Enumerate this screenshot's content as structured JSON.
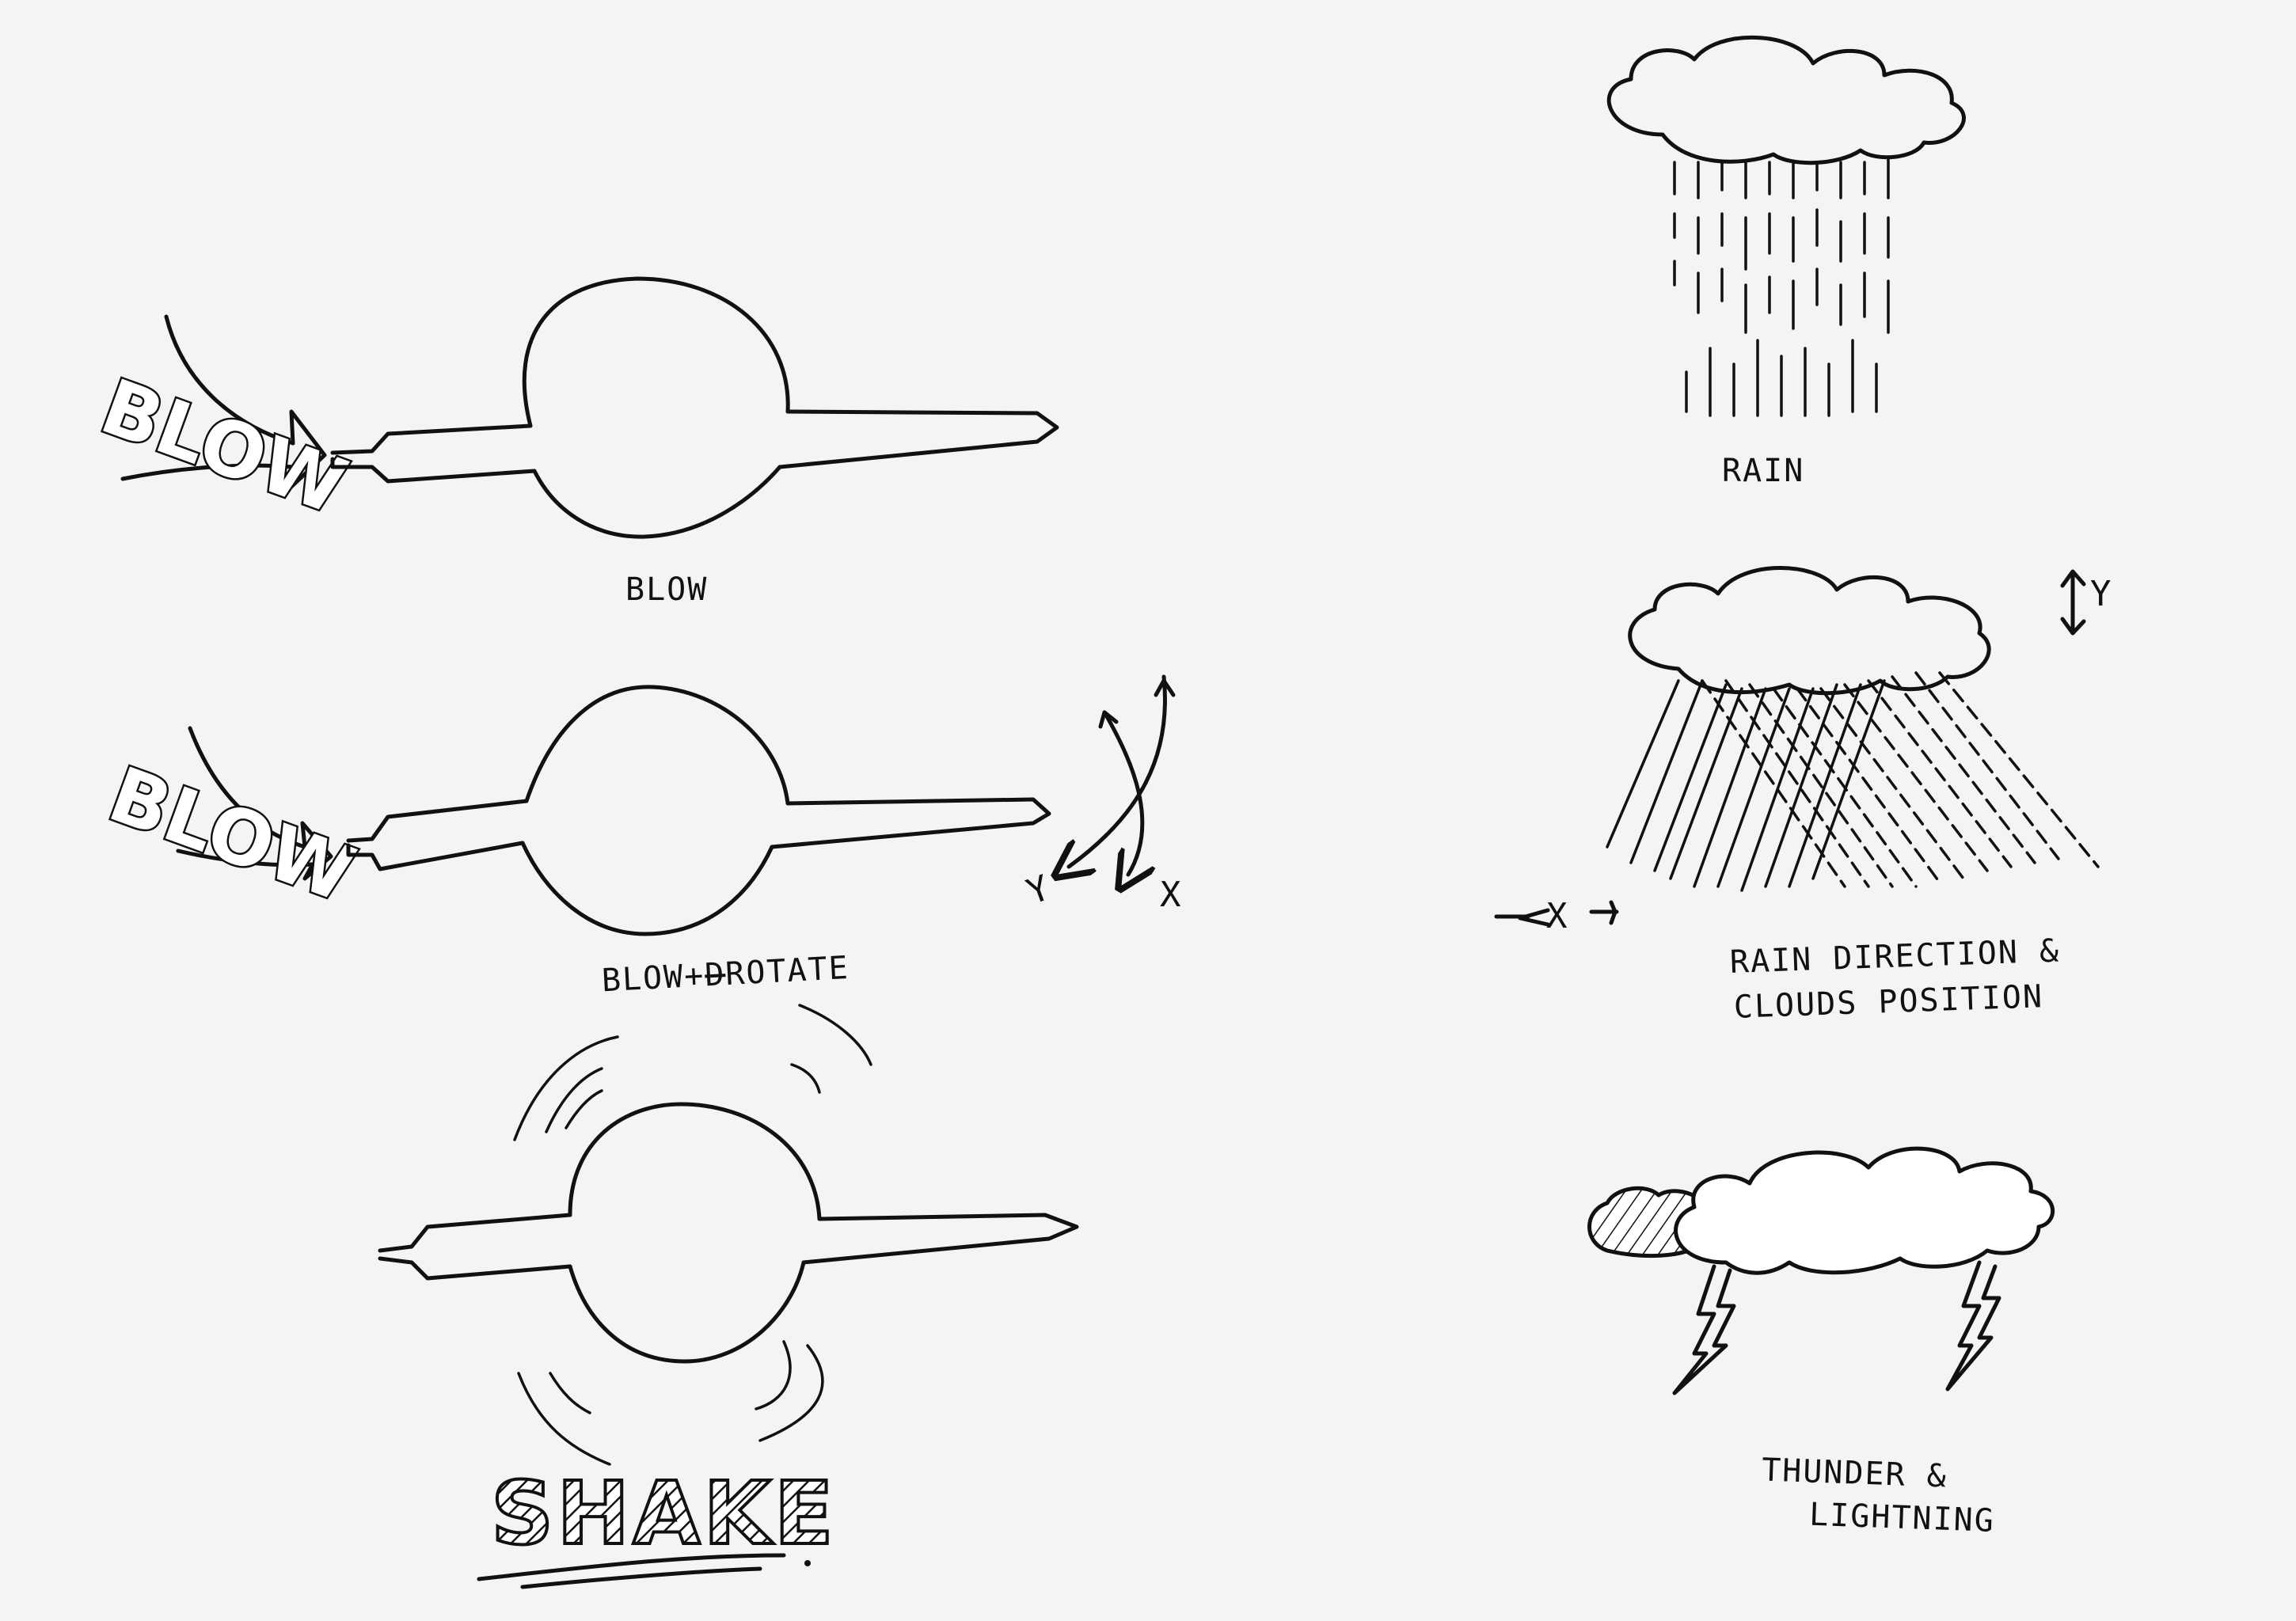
{
  "gestures": {
    "blow": {
      "bubble_word": "BLOW",
      "caption": "BLOW"
    },
    "blow_rotate": {
      "bubble_word": "BLOW",
      "caption": "BLOW+",
      "caption_struck": "D",
      "caption_rest": "ROTATE",
      "axis_y": "Y",
      "axis_x": "X"
    },
    "shake": {
      "caption": "SHAKE"
    }
  },
  "weather": {
    "rain": {
      "caption": "RAIN"
    },
    "rain_direction": {
      "caption_line1": "RAIN DIRECTION &",
      "caption_line2": "CLOUDS POSITION",
      "axis_y": "Y",
      "axis_x": "X"
    },
    "thunder": {
      "caption_line1": "THUNDER &",
      "caption_line2": "LIGHTNING"
    }
  }
}
